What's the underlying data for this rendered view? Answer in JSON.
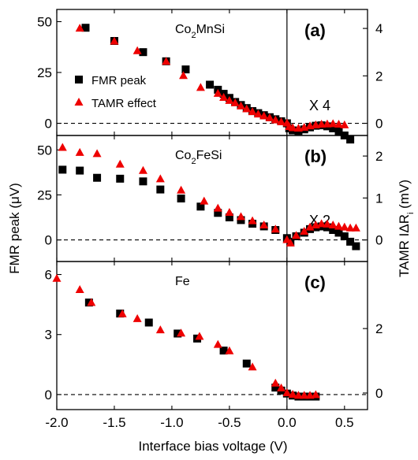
{
  "chart_data": {
    "type": "scatter",
    "xlabel": "Interface bias voltage (V)",
    "ylabel_left": "FMR peak (μV)",
    "ylabel_right": "TAMR IΔR_i (mV)",
    "xlim": [
      -2.0,
      0.7
    ],
    "x_ticks": [
      "-2.0",
      "-1.5",
      "-1.0",
      "-0.5",
      "0.0",
      "0.5"
    ],
    "legend": {
      "placement": "left",
      "entries": [
        "FMR peak",
        "TAMR effect"
      ]
    },
    "colors": {
      "fmr": "#000000",
      "tamr": "#ee0000"
    },
    "panels": [
      {
        "id": "a",
        "letter": "(a)",
        "material": "Co",
        "material_sub": "2",
        "material_rest": "MnSi",
        "scale": "X 4",
        "left_ylim": [
          -6,
          56
        ],
        "left_ticks": [
          "0",
          "25",
          "50"
        ],
        "right_ylim": [
          -0.514,
          4.8
        ],
        "right_ticks": [
          "0",
          "2",
          "4"
        ],
        "series": [
          {
            "name": "FMR peak",
            "x": [
              -1.75,
              -1.5,
              -1.25,
              -1.05,
              -0.88,
              -0.67,
              -0.6,
              -0.55,
              -0.5,
              -0.45,
              -0.4,
              -0.35,
              -0.3,
              -0.25,
              -0.2,
              -0.15,
              -0.1,
              -0.05,
              0.0,
              0.02,
              0.05,
              0.1,
              0.15,
              0.2,
              0.25,
              0.3,
              0.35,
              0.4,
              0.45,
              0.5,
              0.55
            ],
            "y": [
              47,
              40.5,
              35,
              30.5,
              26.5,
              19,
              16.5,
              14.5,
              12.5,
              10.5,
              9,
              7.5,
              6,
              5,
              4,
              3,
              2,
              1,
              0,
              -2.5,
              -3.5,
              -3.8,
              -3,
              -2,
              -1.2,
              -1,
              -1.5,
              -2.5,
              -4,
              -6,
              -8
            ]
          },
          {
            "name": "TAMR effect",
            "x": [
              -1.8,
              -1.5,
              -1.3,
              -1.05,
              -0.9,
              -0.75,
              -0.6,
              -0.55,
              -0.5,
              -0.45,
              -0.4,
              -0.35,
              -0.3,
              -0.25,
              -0.2,
              -0.15,
              -0.1,
              -0.05,
              0.0,
              0.02,
              0.05,
              0.1,
              0.15,
              0.2,
              0.25,
              0.3,
              0.35,
              0.4,
              0.45,
              0.5
            ],
            "y": [
              4.0,
              3.45,
              3.05,
              2.6,
              2.0,
              1.5,
              1.25,
              1.08,
              0.95,
              0.85,
              0.72,
              0.6,
              0.48,
              0.38,
              0.3,
              0.22,
              0.13,
              0.05,
              0.0,
              -0.15,
              -0.2,
              -0.22,
              -0.18,
              -0.12,
              -0.08,
              -0.05,
              -0.04,
              -0.03,
              -0.05,
              -0.08
            ]
          }
        ]
      },
      {
        "id": "b",
        "letter": "(b)",
        "material": "Co",
        "material_sub": "2",
        "material_rest": "FeSi",
        "scale": "X 2",
        "left_ylim": [
          -12,
          58
        ],
        "left_ticks": [
          "0",
          "25",
          "50"
        ],
        "right_ylim": [
          -0.514,
          2.49
        ],
        "right_ticks": [
          "0",
          "1",
          "2"
        ],
        "series": [
          {
            "name": "FMR peak",
            "x": [
              -1.95,
              -1.8,
              -1.65,
              -1.45,
              -1.25,
              -1.1,
              -0.92,
              -0.75,
              -0.6,
              -0.5,
              -0.4,
              -0.3,
              -0.2,
              -0.1,
              0.0,
              0.03,
              0.08,
              0.15,
              0.2,
              0.25,
              0.3,
              0.35,
              0.4,
              0.45,
              0.5,
              0.55,
              0.6
            ],
            "y": [
              39,
              38.5,
              34.5,
              34,
              32.5,
              28,
              23,
              18.5,
              15,
              12.5,
              11,
              9,
              7.5,
              5.5,
              1,
              -1,
              2,
              4,
              6,
              7,
              7.5,
              7,
              5.5,
              4,
              2,
              -1,
              -3.5
            ]
          },
          {
            "name": "TAMR effect",
            "x": [
              -1.95,
              -1.8,
              -1.65,
              -1.45,
              -1.25,
              -1.1,
              -0.92,
              -0.72,
              -0.6,
              -0.5,
              -0.4,
              -0.3,
              -0.2,
              -0.1,
              0.0,
              0.03,
              0.08,
              0.15,
              0.2,
              0.25,
              0.3,
              0.35,
              0.4,
              0.45,
              0.5,
              0.55,
              0.6
            ],
            "y": [
              2.2,
              2.08,
              2.05,
              1.8,
              1.65,
              1.45,
              1.18,
              0.92,
              0.75,
              0.65,
              0.55,
              0.45,
              0.35,
              0.25,
              0.0,
              -0.08,
              0.1,
              0.2,
              0.3,
              0.35,
              0.38,
              0.37,
              0.35,
              0.32,
              0.3,
              0.28,
              0.28
            ]
          }
        ]
      },
      {
        "id": "c",
        "letter": "(c)",
        "material": "Fe",
        "material_sub": "",
        "material_rest": "",
        "scale": "",
        "left_ylim": [
          -0.75,
          6.65
        ],
        "left_ticks": [
          "0",
          "3",
          "6"
        ],
        "right_ylim": [
          -0.514,
          4.08
        ],
        "right_ticks": [
          "0",
          "2"
        ],
        "series": [
          {
            "name": "FMR peak",
            "x": [
              -1.72,
              -1.45,
              -1.2,
              -0.95,
              -0.78,
              -0.55,
              -0.35,
              -0.1,
              -0.05,
              0.0,
              0.05,
              0.1,
              0.15,
              0.2,
              0.25
            ],
            "y": [
              4.6,
              4.05,
              3.6,
              3.05,
              2.8,
              2.2,
              1.55,
              0.35,
              0.2,
              0.05,
              -0.05,
              -0.1,
              -0.1,
              -0.1,
              -0.1
            ]
          },
          {
            "name": "TAMR effect",
            "x": [
              -2.0,
              -1.8,
              -1.7,
              -1.43,
              -1.3,
              -1.1,
              -0.92,
              -0.76,
              -0.6,
              -0.5,
              -0.3,
              -0.1,
              -0.05,
              0.0,
              0.05,
              0.1,
              0.15,
              0.2,
              0.25
            ],
            "y": [
              3.55,
              3.2,
              2.8,
              2.45,
              2.3,
              1.95,
              1.85,
              1.75,
              1.5,
              1.3,
              0.8,
              0.3,
              0.15,
              0.0,
              -0.05,
              -0.08,
              -0.08,
              -0.08,
              -0.06
            ]
          }
        ]
      }
    ]
  }
}
